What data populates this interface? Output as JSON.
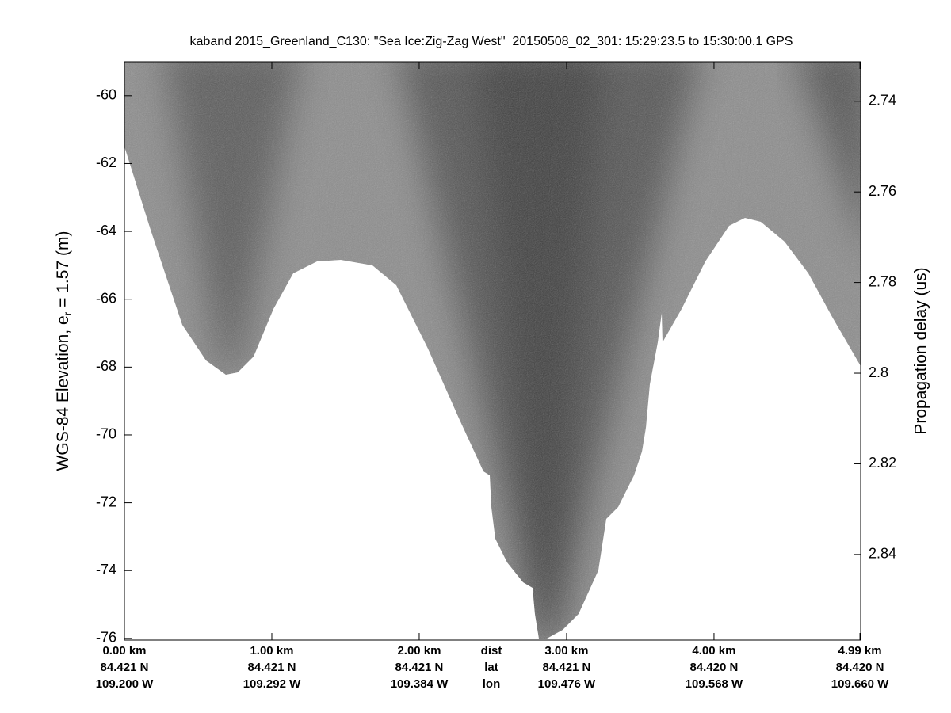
{
  "chart_data": {
    "type": "echogram",
    "title": "kaband 2015_Greenland_C130: \"Sea Ice:Zig-Zag West\"  20150508_02_301: 15:29:23.5 to 15:30:00.1 GPS",
    "ylabel": [
      "WGS-84 Elevation, e",
      "r",
      " = 1.57 (m)"
    ],
    "y2label": "Propagation delay (us)",
    "xlim": [
      0,
      4.995
    ],
    "xticks": [
      {
        "value": 0,
        "label": "0.00 km"
      },
      {
        "value": 1,
        "label": "1.00 km"
      },
      {
        "value": 2,
        "label": "2.00 km"
      },
      {
        "value": 3,
        "label": "3.00 km"
      },
      {
        "value": 4,
        "label": "4.00 km"
      },
      {
        "value": 4.99,
        "label": "4.99 km"
      }
    ],
    "xtick_lat": [
      "84.421 N",
      "84.421 N",
      "84.421 N",
      "84.421 N",
      "84.420 N",
      "84.420 N"
    ],
    "xtick_lon": [
      "109.200 W",
      "109.292 W",
      "109.384 W",
      "109.476 W",
      "109.568 W",
      "109.660 W"
    ],
    "xtick_rows": [
      "dist",
      "lat",
      "lon"
    ],
    "ylim": [
      -76.05,
      -59
    ],
    "yticks": [
      -60,
      -62,
      -64,
      -66,
      -68,
      -70,
      -72,
      -74,
      -76
    ],
    "y2lim": [
      2.7313,
      2.8589
    ],
    "y2ticks": [
      2.74,
      2.76,
      2.78,
      2.8,
      2.82,
      2.84
    ]
  }
}
